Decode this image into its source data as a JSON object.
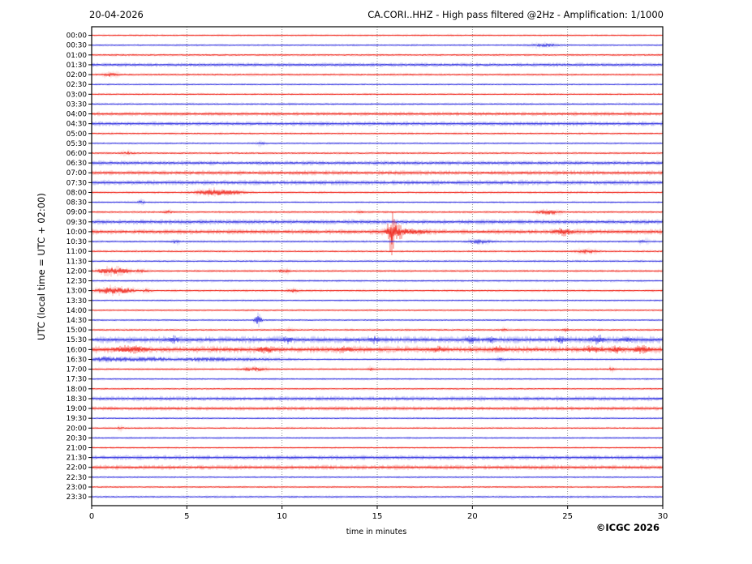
{
  "header": {
    "date": "20-04-2026",
    "title": "CA.CORI..HHZ - High pass filtered @2Hz - Amplification: 1/1000"
  },
  "axes": {
    "ylabel": "UTC (local time = UTC + 02:00)",
    "xlabel": "time in minutes"
  },
  "credit": "©ICGC 2026",
  "chart_data": {
    "type": "line",
    "subtype": "helicorder-seismogram",
    "title": "CA.CORI..HHZ - High pass filtered @2Hz - Amplification: 1/1000",
    "date": "20-04-2026",
    "xlabel": "time in minutes",
    "ylabel": "UTC (local time = UTC + 02:00)",
    "xlim": [
      0,
      30
    ],
    "x_ticks": [
      0,
      5,
      10,
      15,
      20,
      25,
      30
    ],
    "grid": "vertical dotted gridlines at 5-minute intervals",
    "legend": "none",
    "colors": {
      "red": "#ee1408",
      "blue": "#2222dd",
      "grid": "#777777",
      "frame": "#000000"
    },
    "row_minutes": 30,
    "event_fields": [
      "minute_center",
      "width_minutes",
      "amplitude_px"
    ],
    "rows": [
      {
        "t": "00:00",
        "c": "red",
        "n": 0.5,
        "f": false,
        "e": []
      },
      {
        "t": "00:30",
        "c": "blue",
        "n": 0.5,
        "f": false,
        "e": [
          [
            23.8,
            0.5,
            1.1
          ]
        ]
      },
      {
        "t": "01:00",
        "c": "red",
        "n": 0.6,
        "f": false,
        "e": []
      },
      {
        "t": "01:30",
        "c": "blue",
        "n": 0.7,
        "f": true,
        "e": []
      },
      {
        "t": "02:00",
        "c": "red",
        "n": 0.6,
        "f": false,
        "e": [
          [
            1.0,
            0.25,
            1.5
          ]
        ]
      },
      {
        "t": "02:30",
        "c": "blue",
        "n": 0.5,
        "f": false,
        "e": []
      },
      {
        "t": "03:00",
        "c": "red",
        "n": 0.5,
        "f": false,
        "e": []
      },
      {
        "t": "03:30",
        "c": "blue",
        "n": 0.6,
        "f": false,
        "e": []
      },
      {
        "t": "04:00",
        "c": "red",
        "n": 0.7,
        "f": true,
        "e": []
      },
      {
        "t": "04:30",
        "c": "blue",
        "n": 0.8,
        "f": true,
        "e": []
      },
      {
        "t": "05:00",
        "c": "red",
        "n": 0.6,
        "f": false,
        "e": []
      },
      {
        "t": "05:30",
        "c": "blue",
        "n": 0.5,
        "f": false,
        "e": [
          [
            8.9,
            0.15,
            0.9
          ]
        ]
      },
      {
        "t": "06:00",
        "c": "red",
        "n": 0.6,
        "f": false,
        "e": [
          [
            1.9,
            0.2,
            1.0
          ]
        ]
      },
      {
        "t": "06:30",
        "c": "blue",
        "n": 0.8,
        "f": true,
        "e": []
      },
      {
        "t": "07:00",
        "c": "red",
        "n": 0.8,
        "f": true,
        "e": []
      },
      {
        "t": "07:30",
        "c": "blue",
        "n": 0.9,
        "f": true,
        "e": []
      },
      {
        "t": "08:00",
        "c": "red",
        "n": 0.6,
        "f": false,
        "e": [
          [
            6.3,
            0.5,
            2.2
          ],
          [
            7.1,
            0.6,
            1.7
          ]
        ]
      },
      {
        "t": "08:30",
        "c": "blue",
        "n": 0.5,
        "f": false,
        "e": [
          [
            2.6,
            0.1,
            2.0
          ]
        ]
      },
      {
        "t": "09:00",
        "c": "red",
        "n": 0.6,
        "f": false,
        "e": [
          [
            4.0,
            0.15,
            1.2
          ],
          [
            14.1,
            0.1,
            1.0
          ],
          [
            24.0,
            0.35,
            2.2
          ]
        ]
      },
      {
        "t": "09:30",
        "c": "blue",
        "n": 0.9,
        "f": true,
        "e": []
      },
      {
        "t": "10:00",
        "c": "red",
        "n": 0.9,
        "f": true,
        "e": [
          [
            15.75,
            0.12,
            13.0
          ],
          [
            16.05,
            0.25,
            4.0
          ],
          [
            16.6,
            0.7,
            1.6
          ],
          [
            24.8,
            0.3,
            2.2
          ]
        ]
      },
      {
        "t": "10:30",
        "c": "blue",
        "n": 0.6,
        "f": false,
        "e": [
          [
            4.4,
            0.15,
            1.2
          ],
          [
            20.4,
            0.4,
            1.7
          ],
          [
            29.0,
            0.2,
            1.0
          ]
        ]
      },
      {
        "t": "11:00",
        "c": "red",
        "n": 0.6,
        "f": false,
        "e": [
          [
            26.0,
            0.3,
            1.8
          ]
        ]
      },
      {
        "t": "11:30",
        "c": "blue",
        "n": 0.6,
        "f": false,
        "e": []
      },
      {
        "t": "12:00",
        "c": "red",
        "n": 0.6,
        "f": false,
        "e": [
          [
            0.8,
            0.3,
            3.0
          ],
          [
            1.5,
            0.35,
            2.8
          ],
          [
            2.6,
            0.2,
            1.2
          ],
          [
            10.1,
            0.2,
            1.3
          ]
        ]
      },
      {
        "t": "12:30",
        "c": "blue",
        "n": 0.6,
        "f": false,
        "e": []
      },
      {
        "t": "13:00",
        "c": "red",
        "n": 0.6,
        "f": false,
        "e": [
          [
            0.8,
            0.35,
            3.0
          ],
          [
            1.6,
            0.4,
            2.6
          ],
          [
            2.9,
            0.15,
            1.2
          ],
          [
            10.6,
            0.2,
            1.4
          ]
        ]
      },
      {
        "t": "13:30",
        "c": "blue",
        "n": 0.5,
        "f": false,
        "e": []
      },
      {
        "t": "14:00",
        "c": "red",
        "n": 0.5,
        "f": false,
        "e": []
      },
      {
        "t": "14:30",
        "c": "blue",
        "n": 0.5,
        "f": false,
        "e": [
          [
            8.75,
            0.12,
            5.0
          ]
        ]
      },
      {
        "t": "15:00",
        "c": "red",
        "n": 0.6,
        "f": false,
        "e": [
          [
            10.4,
            0.1,
            0.9
          ],
          [
            21.7,
            0.1,
            1.1
          ],
          [
            24.9,
            0.1,
            0.9
          ]
        ]
      },
      {
        "t": "15:30",
        "c": "blue",
        "n": 1.2,
        "f": true,
        "e": [
          [
            4.3,
            0.15,
            1.8
          ],
          [
            10.3,
            0.15,
            1.8
          ],
          [
            14.9,
            0.15,
            2.0
          ],
          [
            19.9,
            0.15,
            2.0
          ],
          [
            21.0,
            0.15,
            1.6
          ],
          [
            24.6,
            0.15,
            2.2
          ],
          [
            26.6,
            0.2,
            2.8
          ],
          [
            28.2,
            0.15,
            1.6
          ]
        ]
      },
      {
        "t": "16:00",
        "c": "red",
        "n": 1.2,
        "f": true,
        "e": [
          [
            1.6,
            0.3,
            1.8
          ],
          [
            2.4,
            0.3,
            1.9
          ],
          [
            9.2,
            0.3,
            1.9
          ],
          [
            13.3,
            0.2,
            1.5
          ],
          [
            18.2,
            0.2,
            1.5
          ],
          [
            21.4,
            0.2,
            1.5
          ],
          [
            26.3,
            0.3,
            1.9
          ],
          [
            27.6,
            0.3,
            1.9
          ],
          [
            28.9,
            0.3,
            1.9
          ]
        ]
      },
      {
        "t": "16:30",
        "c": "blue",
        "n": 0.6,
        "f": false,
        "e": [
          [
            0.7,
            0.4,
            2.0
          ],
          [
            1.8,
            0.5,
            1.6
          ],
          [
            3.2,
            0.6,
            1.4
          ],
          [
            5.5,
            1.2,
            1.0
          ],
          [
            8.0,
            1.5,
            0.8
          ],
          [
            21.5,
            0.15,
            1.0
          ]
        ]
      },
      {
        "t": "17:00",
        "c": "red",
        "n": 0.6,
        "f": false,
        "e": [
          [
            8.5,
            0.4,
            1.6
          ],
          [
            14.7,
            0.1,
            1.0
          ],
          [
            27.3,
            0.1,
            1.1
          ]
        ]
      },
      {
        "t": "17:30",
        "c": "blue",
        "n": 0.5,
        "f": false,
        "e": []
      },
      {
        "t": "18:00",
        "c": "red",
        "n": 0.5,
        "f": false,
        "e": []
      },
      {
        "t": "18:30",
        "c": "blue",
        "n": 0.8,
        "f": true,
        "e": []
      },
      {
        "t": "19:00",
        "c": "red",
        "n": 0.7,
        "f": true,
        "e": []
      },
      {
        "t": "19:30",
        "c": "blue",
        "n": 0.5,
        "f": false,
        "e": []
      },
      {
        "t": "20:00",
        "c": "red",
        "n": 0.5,
        "f": false,
        "e": [
          [
            1.5,
            0.1,
            1.0
          ]
        ]
      },
      {
        "t": "20:30",
        "c": "blue",
        "n": 0.5,
        "f": false,
        "e": []
      },
      {
        "t": "21:00",
        "c": "red",
        "n": 0.5,
        "f": false,
        "e": []
      },
      {
        "t": "21:30",
        "c": "blue",
        "n": 0.8,
        "f": true,
        "e": []
      },
      {
        "t": "22:00",
        "c": "red",
        "n": 0.8,
        "f": true,
        "e": []
      },
      {
        "t": "22:30",
        "c": "blue",
        "n": 0.5,
        "f": false,
        "e": []
      },
      {
        "t": "23:00",
        "c": "red",
        "n": 0.5,
        "f": false,
        "e": []
      },
      {
        "t": "23:30",
        "c": "blue",
        "n": 0.6,
        "f": false,
        "e": []
      }
    ]
  }
}
